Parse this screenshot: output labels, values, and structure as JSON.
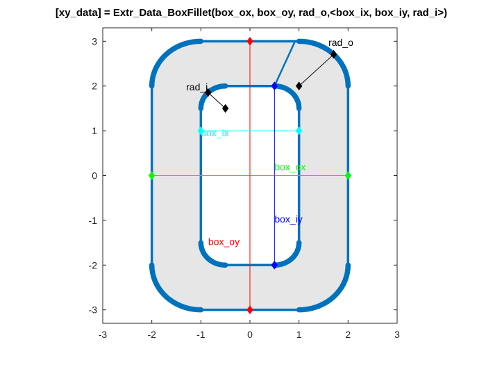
{
  "chart_data": {
    "type": "line",
    "title": "[xy_data] = Extr_Data_BoxFillet(box_ox, box_oy, rad_o,<box_ix, box_iy, rad_i>)",
    "xlabel": "",
    "ylabel": "",
    "xlim": [
      -3.0,
      3.0
    ],
    "ylim": [
      -3.3,
      3.3
    ],
    "xticks": [
      -3,
      -2,
      -1,
      0,
      1,
      2,
      3
    ],
    "yticks": [
      -3,
      -2,
      -1,
      0,
      1,
      2,
      3
    ],
    "xtick_labels": [
      "-3",
      "-2",
      "-1",
      "0",
      "1",
      "2",
      "3"
    ],
    "ytick_labels": [
      "-3",
      "-2",
      "-1",
      "0",
      "1",
      "2",
      "3"
    ],
    "grid": false,
    "box": true,
    "outer_box": {
      "half_width": 2,
      "half_height": 3,
      "radius": 1
    },
    "inner_box": {
      "half_width": 1,
      "half_height": 2,
      "radius": 0.5
    },
    "annotations": [
      {
        "label": "box_ox",
        "color": "#00ff00",
        "x": [
          -2,
          2
        ],
        "y": [
          0,
          0
        ],
        "text_x": 0.5,
        "text_y": 0.12
      },
      {
        "label": "box_oy",
        "color": "#ff0000",
        "x": [
          0,
          0
        ],
        "y": [
          -3,
          3
        ],
        "text_x": -0.85,
        "text_y": -1.55
      },
      {
        "label": "box_ix",
        "color": "#00ffff",
        "x": [
          -1,
          1
        ],
        "y": [
          1,
          1
        ],
        "text_x": -1,
        "text_y": 0.88
      },
      {
        "label": "box_iy",
        "color": "#0000ff",
        "x": [
          0.5,
          0.5
        ],
        "y": [
          -2,
          2
        ],
        "text_x": 0.5,
        "text_y": -1.05
      },
      {
        "label": "rad_o",
        "color": "#000000",
        "x": [
          1,
          1.707
        ],
        "y": [
          2,
          2.707
        ],
        "text_x": 1.6,
        "text_y": 2.9
      },
      {
        "label": "rad_i",
        "color": "#000000",
        "x": [
          -0.5,
          -0.854
        ],
        "y": [
          1.5,
          1.854
        ],
        "text_x": -1.3,
        "text_y": 1.9
      }
    ],
    "connector": {
      "color": "#0072bd",
      "x": [
        0.5,
        0.92
      ],
      "y": [
        2,
        3
      ]
    },
    "colors": {
      "shape_fill": "#e6e6e6",
      "outline": "#0072bd"
    }
  }
}
